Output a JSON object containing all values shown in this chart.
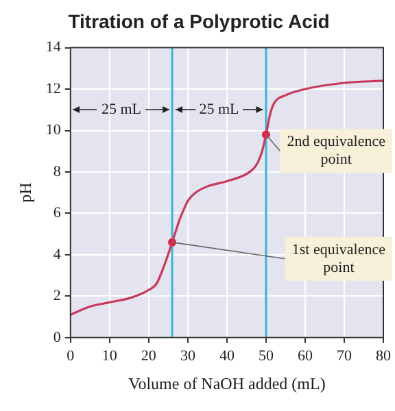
{
  "chart_data": {
    "type": "line",
    "title": "Titration of a Polyprotic Acid",
    "xlabel": "Volume of NaOH added (mL)",
    "ylabel": "pH",
    "series": [
      {
        "marker": "none",
        "color": "#c8385a",
        "x": [
          0,
          5,
          10,
          15,
          18,
          20,
          22,
          24,
          26,
          28,
          29,
          30,
          32,
          35,
          40,
          45,
          47,
          48,
          49,
          50,
          51,
          52,
          55,
          60,
          70,
          80
        ],
        "values": [
          1.1,
          1.5,
          1.7,
          1.9,
          2.1,
          2.3,
          2.6,
          3.5,
          4.6,
          5.75,
          6.2,
          6.6,
          7.0,
          7.3,
          7.55,
          7.9,
          8.2,
          8.5,
          9.0,
          9.8,
          10.75,
          11.3,
          11.7,
          12.0,
          12.3,
          12.4
        ]
      },
      {
        "type": "scatter",
        "marker": "circle",
        "color": "#e0203a",
        "x": [
          26,
          50
        ],
        "values": [
          4.6,
          9.8
        ]
      }
    ],
    "ref_lines": [
      {
        "axis": "x",
        "value": 26,
        "color": "#3ab4d4"
      },
      {
        "axis": "x",
        "value": 50,
        "color": "#3ab4d4"
      }
    ],
    "annotations": [
      "25 mL",
      "25 mL",
      {
        "text": "2nd equivalence point",
        "x": 50,
        "y": 9.8
      },
      {
        "text": "1st equivalence point",
        "x": 26,
        "y": 4.6
      }
    ],
    "xlim": [
      0,
      80
    ],
    "xticks": [
      0,
      10,
      20,
      30,
      40,
      50,
      60,
      70,
      80
    ],
    "ylim": [
      0,
      14
    ],
    "yticks": [
      0,
      2,
      4,
      6,
      8,
      10,
      12,
      14
    ],
    "grid": true,
    "legend": false
  }
}
